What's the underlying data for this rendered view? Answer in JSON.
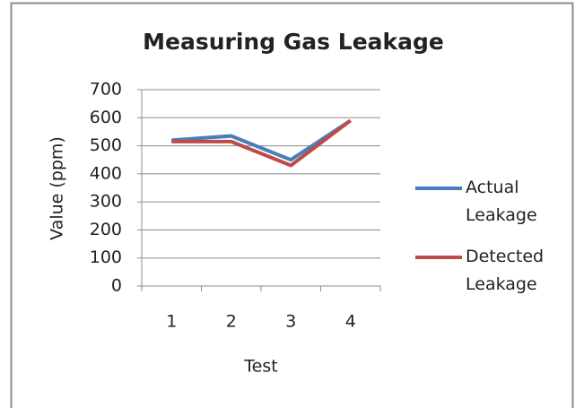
{
  "chart_data": {
    "type": "line",
    "title": "Measuring Gas Leakage",
    "x_label": "Test",
    "y_label": "Value (ppm)",
    "categories": [
      "1",
      "2",
      "3",
      "4"
    ],
    "series": [
      {
        "name": "Actual Leakage",
        "color": "#4a7ebb",
        "values": [
          520,
          535,
          450,
          590
        ]
      },
      {
        "name": "Detected Leakage",
        "color": "#be4b48",
        "values": [
          515,
          515,
          430,
          590
        ]
      }
    ],
    "ylim": [
      0,
      700
    ],
    "yticks": [
      0,
      100,
      200,
      300,
      400,
      500,
      600,
      700
    ],
    "grid": true,
    "legend": "right"
  }
}
